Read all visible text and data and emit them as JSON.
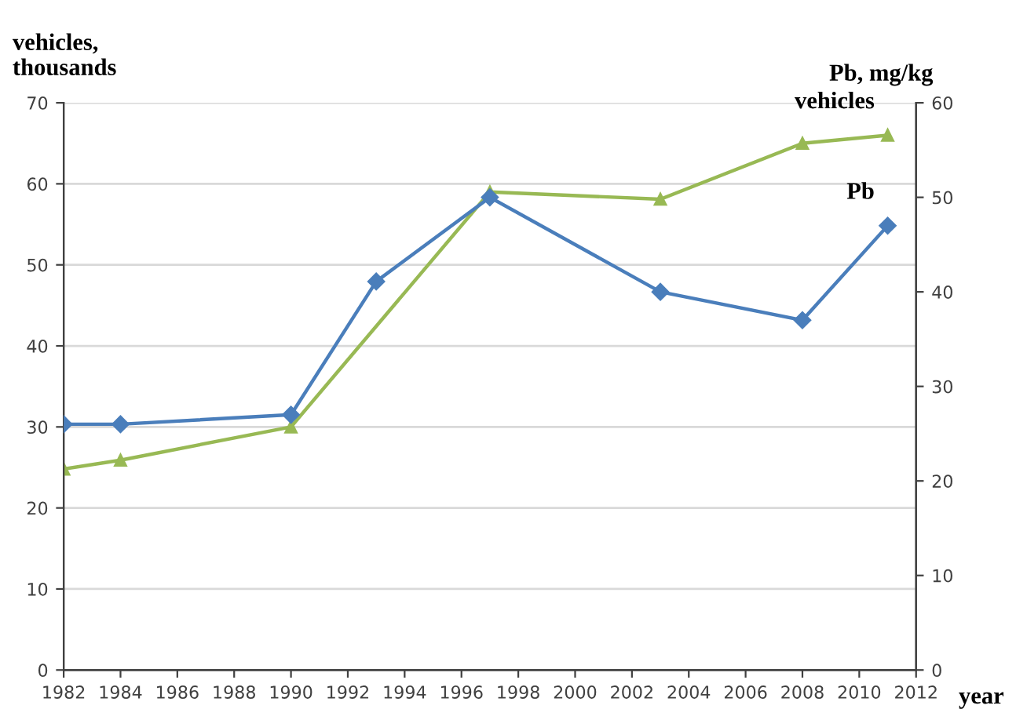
{
  "chart_data": {
    "type": "line",
    "ylabel": "vehicles,\nthousands",
    "y2label": "Pb, mg/kg",
    "xlabel": "year",
    "xlim": [
      1982,
      2012
    ],
    "xticks": [
      1982,
      1984,
      1986,
      1988,
      1990,
      1992,
      1994,
      1996,
      1998,
      2000,
      2002,
      2004,
      2006,
      2008,
      2010,
      2012
    ],
    "ylim": [
      0,
      70
    ],
    "yticks": [
      0,
      10,
      20,
      30,
      40,
      50,
      60,
      70
    ],
    "y2lim": [
      0,
      60
    ],
    "y2ticks": [
      0,
      10,
      20,
      30,
      40,
      50,
      60
    ],
    "grid": "y",
    "legend": false,
    "series": [
      {
        "name": "Pb",
        "axis": "y2",
        "color": "#4a7ebb",
        "marker": "diamond",
        "x": [
          1982,
          1984,
          1990,
          1993,
          1997,
          2003,
          2008,
          2011
        ],
        "values": [
          26.0,
          26.0,
          27.0,
          41.1,
          50.0,
          40.0,
          37.0,
          47.0
        ]
      },
      {
        "name": "vehicles",
        "axis": "y",
        "color": "#98b954",
        "marker": "triangle",
        "x": [
          1982,
          1984,
          1990,
          1997,
          2003,
          2008,
          2011
        ],
        "values": [
          24.8,
          25.9,
          30.0,
          59.0,
          58.1,
          65.0,
          66.0
        ]
      }
    ]
  }
}
